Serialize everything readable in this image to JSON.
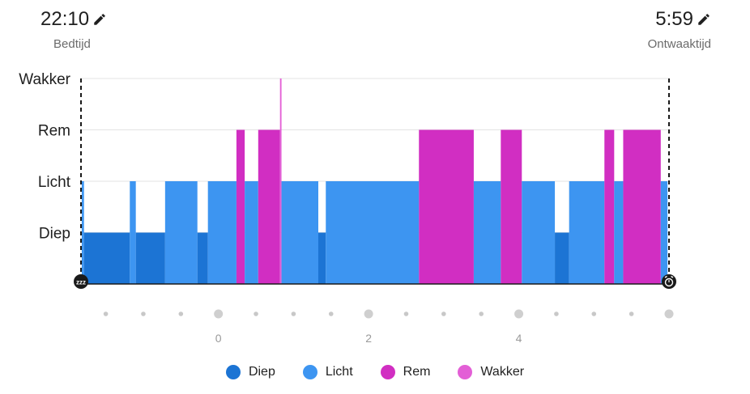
{
  "bedtime": {
    "time": "22:10",
    "label": "Bedtijd"
  },
  "waketime": {
    "time": "5:59",
    "label": "Ontwaaktijd"
  },
  "icons": {
    "edit": "pencil-icon",
    "start": "sleep-zzz-icon",
    "end": "alarm-clock-icon"
  },
  "colors": {
    "deep": "#1c74d4",
    "light": "#3d95f1",
    "rem": "#d12ec2",
    "awake": "#e35fd6"
  },
  "chart_data": {
    "type": "step-area",
    "title": "",
    "xlabel": "",
    "ylabel": "",
    "levels": [
      "Diep",
      "Licht",
      "Rem",
      "Wakker"
    ],
    "x_unit": "hours relative to midnight",
    "xlim": [
      -1.83,
      6.0
    ],
    "xticks": [
      0,
      2,
      4
    ],
    "xticklabels": [
      "0",
      "2",
      "4"
    ],
    "segments": [
      {
        "stage": "Licht",
        "start": -1.82,
        "end": -1.79
      },
      {
        "stage": "Diep",
        "start": -1.79,
        "end": -1.18
      },
      {
        "stage": "Licht",
        "start": -1.18,
        "end": -1.1
      },
      {
        "stage": "Diep",
        "start": -1.1,
        "end": -0.71
      },
      {
        "stage": "Licht",
        "start": -0.71,
        "end": -0.28
      },
      {
        "stage": "Diep",
        "start": -0.28,
        "end": -0.14
      },
      {
        "stage": "Licht",
        "start": -0.14,
        "end": 0.24
      },
      {
        "stage": "Rem",
        "start": 0.24,
        "end": 0.35
      },
      {
        "stage": "Licht",
        "start": 0.35,
        "end": 0.53
      },
      {
        "stage": "Rem",
        "start": 0.53,
        "end": 0.82
      },
      {
        "stage": "Wakker",
        "start": 0.82,
        "end": 0.84
      },
      {
        "stage": "Licht",
        "start": 0.84,
        "end": 1.33
      },
      {
        "stage": "Diep",
        "start": 1.33,
        "end": 1.43
      },
      {
        "stage": "Licht",
        "start": 1.43,
        "end": 2.67
      },
      {
        "stage": "Rem",
        "start": 2.67,
        "end": 3.4
      },
      {
        "stage": "Licht",
        "start": 3.4,
        "end": 3.76
      },
      {
        "stage": "Rem",
        "start": 3.76,
        "end": 4.04
      },
      {
        "stage": "Licht",
        "start": 4.04,
        "end": 4.48
      },
      {
        "stage": "Diep",
        "start": 4.48,
        "end": 4.67
      },
      {
        "stage": "Licht",
        "start": 4.67,
        "end": 5.14
      },
      {
        "stage": "Rem",
        "start": 5.14,
        "end": 5.27
      },
      {
        "stage": "Licht",
        "start": 5.27,
        "end": 5.39
      },
      {
        "stage": "Rem",
        "start": 5.39,
        "end": 5.89
      },
      {
        "stage": "Licht",
        "start": 5.89,
        "end": 5.98
      }
    ],
    "legend": [
      {
        "label": "Diep",
        "color": "#1c74d4"
      },
      {
        "label": "Licht",
        "color": "#3d95f1"
      },
      {
        "label": "Rem",
        "color": "#d12ec2"
      },
      {
        "label": "Wakker",
        "color": "#e35fd6"
      }
    ]
  }
}
